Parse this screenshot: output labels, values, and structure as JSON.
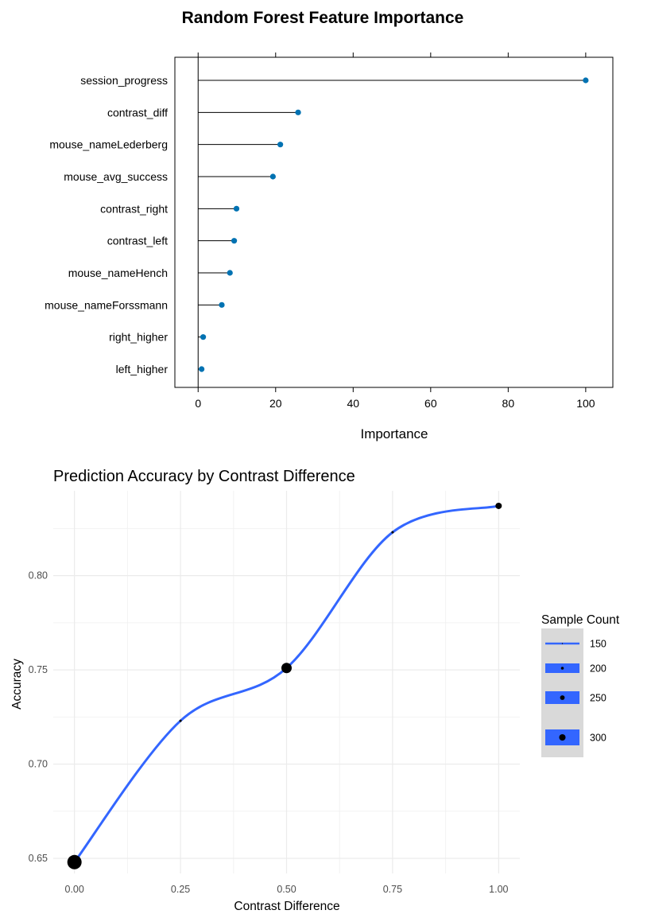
{
  "chart_data": [
    {
      "type": "lollipop",
      "title": "Random Forest Feature Importance",
      "xlabel": "Importance",
      "ylabel": "",
      "xlim": [
        -6,
        107
      ],
      "xticks": [
        0,
        20,
        40,
        60,
        80,
        100
      ],
      "xtick_labels": [
        "0",
        "20",
        "40",
        "60",
        "80",
        "100"
      ],
      "grid": false,
      "point_color": "#0072B2",
      "categories": [
        "session_progress",
        "contrast_diff",
        "mouse_nameLederberg",
        "mouse_avg_success",
        "contrast_right",
        "contrast_left",
        "mouse_nameHench",
        "mouse_nameForssmann",
        "right_higher",
        "left_higher"
      ],
      "values": [
        100,
        25.8,
        21.2,
        19.3,
        9.9,
        9.3,
        8.2,
        6.1,
        1.3,
        0.9
      ]
    },
    {
      "type": "line",
      "title": "Prediction Accuracy by Contrast Difference",
      "xlabel": "Contrast Difference",
      "ylabel": "Accuracy",
      "xlim": [
        -0.05,
        1.05
      ],
      "ylim": [
        0.642,
        0.845
      ],
      "xticks": [
        0.0,
        0.25,
        0.5,
        0.75,
        1.0
      ],
      "xtick_labels": [
        "0.00",
        "0.25",
        "0.50",
        "0.75",
        "1.00"
      ],
      "yticks": [
        0.65,
        0.7,
        0.75,
        0.8
      ],
      "ytick_labels": [
        "0.65",
        "0.70",
        "0.75",
        "0.80"
      ],
      "grid": true,
      "smooth": true,
      "line_color": "#3366FF",
      "point_color": "#000000",
      "x": [
        0.0,
        0.25,
        0.5,
        0.75,
        1.0
      ],
      "y": [
        0.648,
        0.723,
        0.751,
        0.823,
        0.837
      ],
      "sample_count": [
        300,
        150,
        250,
        150,
        200
      ],
      "legend": {
        "title": "Sample Count",
        "position": "right",
        "labels": [
          "150",
          "200",
          "250",
          "300"
        ],
        "sizes": [
          150,
          200,
          250,
          300
        ]
      }
    }
  ]
}
